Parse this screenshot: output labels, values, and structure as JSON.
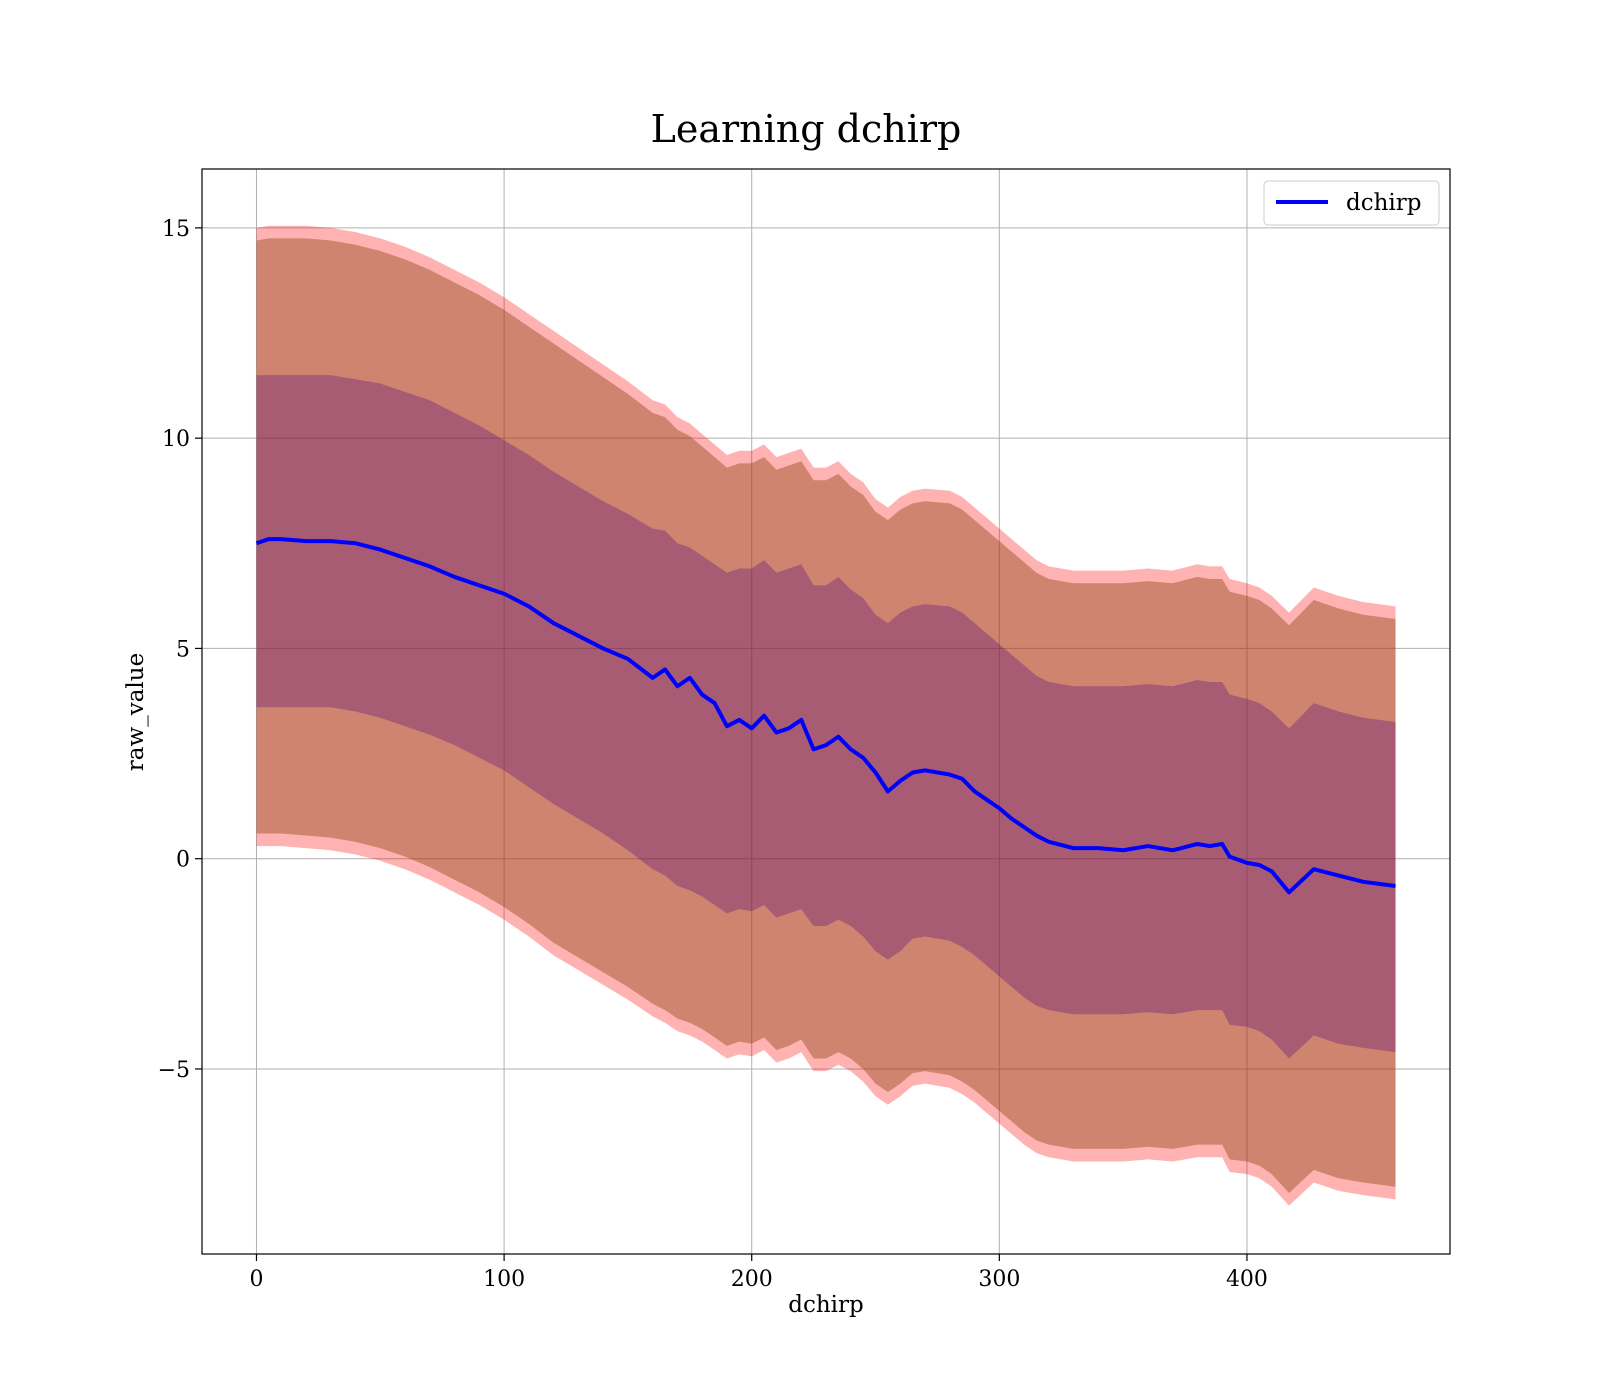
{
  "chart_data": {
    "type": "line",
    "title": "Learning dchirp",
    "xlabel": "dchirp",
    "ylabel": "raw_value",
    "xlim": [
      -22,
      482
    ],
    "ylim": [
      -9.4,
      16.4
    ],
    "xticks": [
      0,
      100,
      200,
      300,
      400
    ],
    "xtick_labels": [
      "0",
      "100",
      "200",
      "300",
      "400"
    ],
    "yticks": [
      -5,
      0,
      5,
      10,
      15
    ],
    "ytick_labels": [
      "−5",
      "0",
      "5",
      "10",
      "15"
    ],
    "grid": true,
    "legend_position": "top-right",
    "colors": {
      "line": "#0000ff",
      "band_outer": "#ff0000",
      "band_middle": "#8b4513",
      "band_inner": "#4b0082",
      "grid": "#b0b0b0"
    },
    "series": [
      {
        "name": "dchirp",
        "x": [
          0,
          5,
          10,
          20,
          30,
          40,
          50,
          60,
          70,
          80,
          90,
          100,
          110,
          120,
          130,
          140,
          150,
          160,
          165,
          170,
          175,
          180,
          185,
          190,
          195,
          200,
          205,
          210,
          215,
          220,
          225,
          230,
          235,
          240,
          245,
          250,
          255,
          260,
          265,
          270,
          280,
          285,
          290,
          295,
          300,
          305,
          310,
          315,
          320,
          330,
          340,
          350,
          360,
          370,
          380,
          385,
          390,
          393,
          400,
          405,
          410,
          417,
          427,
          437,
          447,
          460
        ],
        "y": [
          7.5,
          7.6,
          7.6,
          7.55,
          7.55,
          7.5,
          7.35,
          7.15,
          6.95,
          6.7,
          6.5,
          6.3,
          6.0,
          5.6,
          5.3,
          5.0,
          4.75,
          4.3,
          4.5,
          4.1,
          4.3,
          3.9,
          3.7,
          3.15,
          3.3,
          3.1,
          3.4,
          3.0,
          3.1,
          3.3,
          2.6,
          2.7,
          2.9,
          2.6,
          2.4,
          2.05,
          1.6,
          1.85,
          2.05,
          2.1,
          2.0,
          1.9,
          1.6,
          1.4,
          1.2,
          0.95,
          0.75,
          0.55,
          0.4,
          0.25,
          0.25,
          0.2,
          0.3,
          0.2,
          0.35,
          0.3,
          0.35,
          0.05,
          -0.1,
          -0.15,
          -0.3,
          -0.8,
          -0.25,
          -0.4,
          -0.55,
          -0.65
        ],
        "band_inner_upper": [
          11.5,
          11.5,
          11.5,
          11.5,
          11.5,
          11.4,
          11.3,
          11.1,
          10.9,
          10.6,
          10.3,
          9.95,
          9.6,
          9.2,
          8.85,
          8.5,
          8.2,
          7.85,
          7.8,
          7.5,
          7.4,
          7.2,
          7.0,
          6.8,
          6.9,
          6.9,
          7.1,
          6.8,
          6.9,
          7.0,
          6.5,
          6.5,
          6.7,
          6.4,
          6.2,
          5.8,
          5.6,
          5.85,
          6.0,
          6.05,
          6.0,
          5.85,
          5.6,
          5.35,
          5.1,
          4.85,
          4.6,
          4.35,
          4.2,
          4.1,
          4.1,
          4.1,
          4.15,
          4.1,
          4.25,
          4.2,
          4.2,
          3.9,
          3.8,
          3.7,
          3.5,
          3.1,
          3.7,
          3.5,
          3.35,
          3.25
        ],
        "band_inner_lower": [
          3.6,
          3.6,
          3.6,
          3.6,
          3.6,
          3.5,
          3.35,
          3.15,
          2.95,
          2.7,
          2.4,
          2.1,
          1.7,
          1.3,
          0.95,
          0.6,
          0.2,
          -0.25,
          -0.4,
          -0.65,
          -0.75,
          -0.9,
          -1.1,
          -1.3,
          -1.2,
          -1.25,
          -1.1,
          -1.4,
          -1.3,
          -1.2,
          -1.6,
          -1.6,
          -1.45,
          -1.6,
          -1.85,
          -2.2,
          -2.4,
          -2.2,
          -1.9,
          -1.85,
          -1.95,
          -2.1,
          -2.3,
          -2.55,
          -2.8,
          -3.05,
          -3.3,
          -3.5,
          -3.6,
          -3.7,
          -3.7,
          -3.7,
          -3.65,
          -3.7,
          -3.6,
          -3.6,
          -3.6,
          -3.95,
          -4.0,
          -4.1,
          -4.3,
          -4.75,
          -4.2,
          -4.4,
          -4.5,
          -4.6
        ],
        "band_outer_upper": [
          15.0,
          15.05,
          15.05,
          15.05,
          15.0,
          14.9,
          14.75,
          14.55,
          14.3,
          14.0,
          13.7,
          13.35,
          12.95,
          12.55,
          12.15,
          11.75,
          11.35,
          10.9,
          10.8,
          10.5,
          10.35,
          10.1,
          9.85,
          9.6,
          9.7,
          9.7,
          9.85,
          9.55,
          9.65,
          9.75,
          9.3,
          9.3,
          9.45,
          9.15,
          8.95,
          8.55,
          8.35,
          8.6,
          8.75,
          8.8,
          8.75,
          8.6,
          8.35,
          8.1,
          7.85,
          7.6,
          7.35,
          7.1,
          6.95,
          6.85,
          6.85,
          6.85,
          6.9,
          6.85,
          7.0,
          6.95,
          6.95,
          6.65,
          6.55,
          6.45,
          6.25,
          5.85,
          6.45,
          6.25,
          6.1,
          6.0
        ],
        "band_outer_lower": [
          0.3,
          0.3,
          0.3,
          0.25,
          0.2,
          0.1,
          -0.05,
          -0.25,
          -0.5,
          -0.8,
          -1.1,
          -1.45,
          -1.85,
          -2.3,
          -2.65,
          -3.0,
          -3.35,
          -3.75,
          -3.9,
          -4.1,
          -4.2,
          -4.35,
          -4.55,
          -4.75,
          -4.65,
          -4.7,
          -4.55,
          -4.85,
          -4.75,
          -4.6,
          -5.05,
          -5.05,
          -4.9,
          -5.05,
          -5.3,
          -5.65,
          -5.85,
          -5.65,
          -5.4,
          -5.35,
          -5.45,
          -5.6,
          -5.8,
          -6.05,
          -6.3,
          -6.55,
          -6.8,
          -7.0,
          -7.1,
          -7.2,
          -7.2,
          -7.2,
          -7.15,
          -7.2,
          -7.1,
          -7.1,
          -7.1,
          -7.45,
          -7.5,
          -7.6,
          -7.8,
          -8.25,
          -7.7,
          -7.9,
          -8.0,
          -8.1
        ]
      }
    ]
  }
}
